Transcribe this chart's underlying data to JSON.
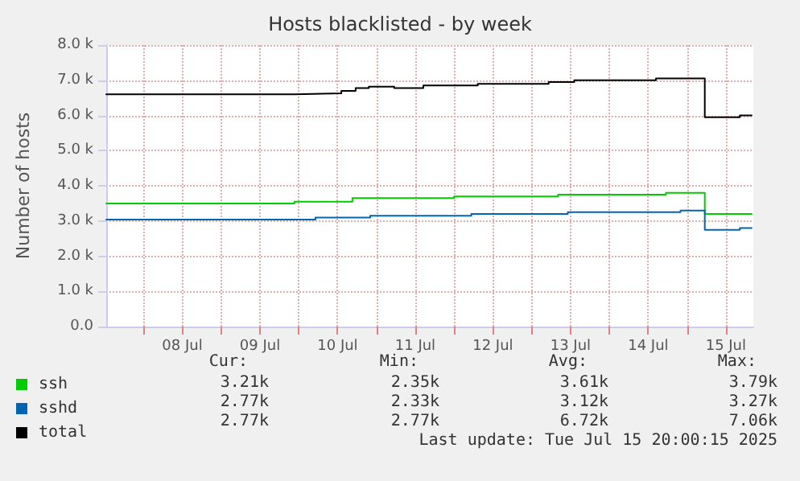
{
  "chart_data": {
    "type": "step",
    "title": "Hosts blacklisted - by week",
    "ylabel": "Number of hosts",
    "xlim": [
      "2025-07-07T12:30",
      "2025-07-15T20:30"
    ],
    "xticks": [
      {
        "value": "2025-07-08T00:00",
        "label": null
      },
      {
        "value": "2025-07-08T12:00",
        "label": "08 Jul"
      },
      {
        "value": "2025-07-09T00:00",
        "label": null
      },
      {
        "value": "2025-07-09T12:00",
        "label": "09 Jul"
      },
      {
        "value": "2025-07-10T00:00",
        "label": null
      },
      {
        "value": "2025-07-10T12:00",
        "label": "10 Jul"
      },
      {
        "value": "2025-07-11T00:00",
        "label": null
      },
      {
        "value": "2025-07-11T12:00",
        "label": "11 Jul"
      },
      {
        "value": "2025-07-12T00:00",
        "label": null
      },
      {
        "value": "2025-07-12T12:00",
        "label": "12 Jul"
      },
      {
        "value": "2025-07-13T00:00",
        "label": null
      },
      {
        "value": "2025-07-13T12:00",
        "label": "13 Jul"
      },
      {
        "value": "2025-07-14T00:00",
        "label": null
      },
      {
        "value": "2025-07-14T12:00",
        "label": "14 Jul"
      },
      {
        "value": "2025-07-15T00:00",
        "label": null
      },
      {
        "value": "2025-07-15T12:00",
        "label": "15 Jul"
      }
    ],
    "ylim": [
      0,
      8000
    ],
    "yticks": [
      {
        "value": 0,
        "label": "0.0"
      },
      {
        "value": 1000,
        "label": "1.0 k"
      },
      {
        "value": 2000,
        "label": "2.0 k"
      },
      {
        "value": 3000,
        "label": "3.0 k"
      },
      {
        "value": 4000,
        "label": "4.0 k"
      },
      {
        "value": 5000,
        "label": "5.0 k"
      },
      {
        "value": 6000,
        "label": "6.0 k"
      },
      {
        "value": 7000,
        "label": "7.0 k"
      },
      {
        "value": 8000,
        "label": "8.0 k"
      }
    ],
    "grid": true,
    "legend": "bottom left",
    "marker": "none",
    "series": [
      {
        "name": "ssh",
        "color": "#00cc00",
        "x": [
          "2025-07-07T12:30",
          "2025-07-09T22:40",
          "2025-07-10T16:35",
          "2025-07-12T00:00",
          "2025-07-13T08:10",
          "2025-07-14T17:30",
          "2025-07-15T05:30",
          "2025-07-15T20:00"
        ],
        "values": [
          3500,
          3550,
          3650,
          3700,
          3750,
          3800,
          3200,
          3200
        ]
      },
      {
        "name": "sshd",
        "color": "#0066b3",
        "x": [
          "2025-07-07T12:30",
          "2025-07-10T05:10",
          "2025-07-10T22:05",
          "2025-07-12T05:20",
          "2025-07-13T11:10",
          "2025-07-14T22:00",
          "2025-07-15T05:30",
          "2025-07-15T16:20",
          "2025-07-15T20:00"
        ],
        "values": [
          3040,
          3100,
          3150,
          3200,
          3250,
          3300,
          2750,
          2800,
          2800
        ]
      },
      {
        "name": "total",
        "color": "#000000",
        "x": [
          "2025-07-07T12:30",
          "2025-07-09T22:40",
          "2025-07-10T13:10",
          "2025-07-10T17:35",
          "2025-07-10T21:40",
          "2025-07-11T05:30",
          "2025-07-11T14:30",
          "2025-07-12T07:20",
          "2025-07-13T05:15",
          "2025-07-13T13:10",
          "2025-07-14T14:25",
          "2025-07-15T05:30",
          "2025-07-15T16:20",
          "2025-07-15T20:00"
        ],
        "values": [
          6600,
          6630,
          6700,
          6780,
          6820,
          6780,
          6850,
          6900,
          6950,
          7000,
          7050,
          5950,
          6000,
          6000
        ]
      }
    ],
    "annotations": [
      "Cur:",
      "Min:",
      "Avg:",
      "Max:",
      "3.21k",
      "2.35k",
      "3.61k",
      "3.79k",
      "2.77k",
      "2.33k",
      "3.12k",
      "3.27k",
      "2.77k",
      "2.77k",
      "6.72k",
      "7.06k",
      "Last update: Tue Jul 15 20:00:15 2025"
    ]
  }
}
